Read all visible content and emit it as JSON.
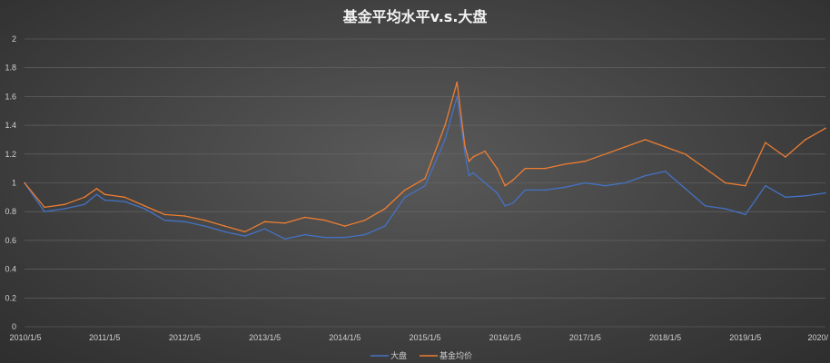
{
  "chart_data": {
    "type": "line",
    "title": "基金平均水平v.s.大盘",
    "xlabel": "",
    "ylabel": "",
    "ylim": [
      0,
      2
    ],
    "y_ticks": [
      "0",
      "0.2",
      "0.4",
      "0.6",
      "0.8",
      "1",
      "1.2",
      "1.4",
      "1.6",
      "1.8",
      "2"
    ],
    "x_ticks": [
      "2010/1/5",
      "2011/1/5",
      "2012/1/5",
      "2013/1/5",
      "2014/1/5",
      "2015/1/5",
      "2016/1/5",
      "2017/1/5",
      "2018/1/5",
      "2019/1/5",
      "2020/"
    ],
    "grid": true,
    "legend_position": "bottom",
    "x": [
      0,
      0.25,
      0.5,
      0.75,
      0.9,
      1.0,
      1.25,
      1.5,
      1.75,
      2.0,
      2.25,
      2.5,
      2.75,
      3.0,
      3.25,
      3.5,
      3.75,
      4.0,
      4.25,
      4.5,
      4.75,
      5.0,
      5.25,
      5.4,
      5.5,
      5.55,
      5.6,
      5.75,
      5.9,
      6.0,
      6.1,
      6.25,
      6.5,
      6.75,
      7.0,
      7.25,
      7.5,
      7.75,
      8.0,
      8.25,
      8.5,
      8.75,
      9.0,
      9.25,
      9.5,
      9.75,
      10.0
    ],
    "series": [
      {
        "name": "大盘",
        "color": "#4472c4",
        "values": [
          1.0,
          0.8,
          0.82,
          0.85,
          0.92,
          0.88,
          0.87,
          0.82,
          0.74,
          0.73,
          0.7,
          0.66,
          0.63,
          0.68,
          0.61,
          0.64,
          0.62,
          0.62,
          0.64,
          0.7,
          0.9,
          0.98,
          1.3,
          1.6,
          1.2,
          1.05,
          1.07,
          1.0,
          0.93,
          0.84,
          0.86,
          0.95,
          0.95,
          0.97,
          1.0,
          0.98,
          1.0,
          1.05,
          1.08,
          0.96,
          0.84,
          0.82,
          0.78,
          0.98,
          0.9,
          0.91,
          0.93
        ]
      },
      {
        "name": "基金均价",
        "color": "#ed7d31",
        "values": [
          1.0,
          0.83,
          0.85,
          0.9,
          0.96,
          0.92,
          0.9,
          0.84,
          0.78,
          0.77,
          0.74,
          0.7,
          0.66,
          0.73,
          0.72,
          0.76,
          0.74,
          0.7,
          0.74,
          0.82,
          0.95,
          1.03,
          1.4,
          1.7,
          1.25,
          1.15,
          1.18,
          1.22,
          1.1,
          0.98,
          1.02,
          1.1,
          1.1,
          1.13,
          1.15,
          1.2,
          1.25,
          1.3,
          1.25,
          1.2,
          1.1,
          1.0,
          0.98,
          1.28,
          1.18,
          1.3,
          1.38
        ]
      }
    ]
  }
}
